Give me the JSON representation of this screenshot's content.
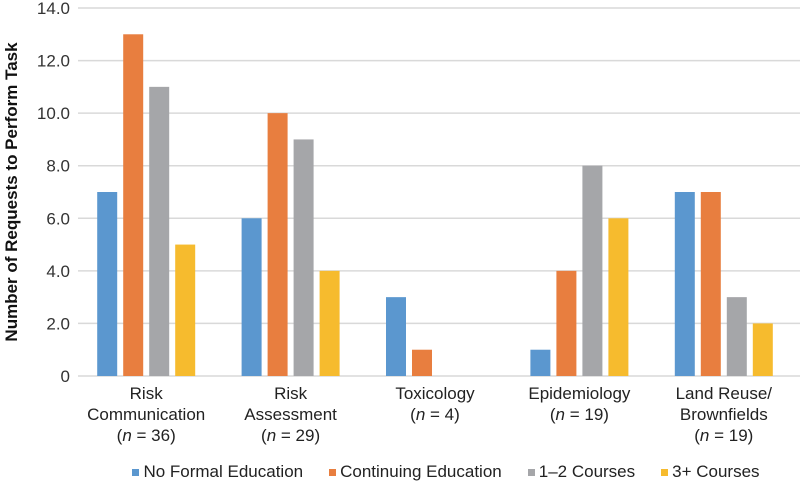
{
  "chart_data": {
    "type": "bar",
    "title": "",
    "xlabel": "",
    "ylabel": "Number of Requests to Perform Task",
    "ylim": [
      0,
      14
    ],
    "yticks": [
      "0",
      "2.0",
      "4.0",
      "6.0",
      "8.0",
      "10.0",
      "12.0",
      "14.0"
    ],
    "grid": true,
    "legend_position": "bottom",
    "categories": [
      {
        "lines": [
          "Risk",
          "Communication",
          "(n = 36)"
        ]
      },
      {
        "lines": [
          "Risk",
          "Assessment",
          "(n = 29)"
        ]
      },
      {
        "lines": [
          "Toxicology",
          "(n = 4)"
        ]
      },
      {
        "lines": [
          "Epidemiology",
          "(n = 19)"
        ]
      },
      {
        "lines": [
          "Land Reuse/",
          "Brownfields",
          "(n = 19)"
        ]
      }
    ],
    "series": [
      {
        "name": "No Formal Education",
        "color": "#5b97cf",
        "values": [
          7,
          6,
          3,
          1,
          7
        ]
      },
      {
        "name": "Continuing Education",
        "color": "#e87e3f",
        "values": [
          13,
          10,
          1,
          4,
          7
        ]
      },
      {
        "name": "1–2 Courses",
        "color": "#a5a6a9",
        "values": [
          11,
          9,
          0,
          8,
          3
        ]
      },
      {
        "name": "3+ Courses",
        "color": "#f6bb2e",
        "values": [
          5,
          4,
          0,
          6,
          2
        ]
      }
    ]
  }
}
